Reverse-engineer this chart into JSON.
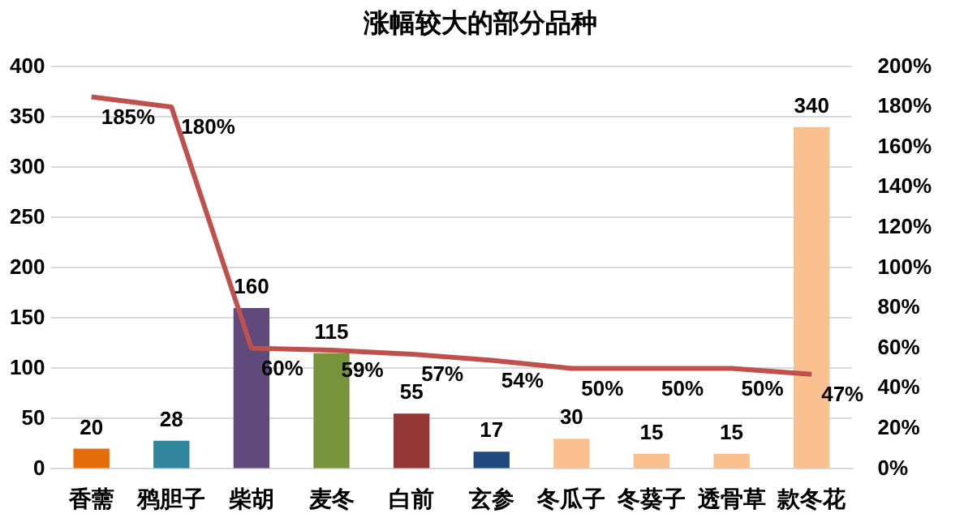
{
  "chart_data": {
    "type": "bar",
    "title": "涨幅较大的部分品种",
    "categories": [
      "香薷",
      "鸦胆子",
      "柴胡",
      "麦冬",
      "白前",
      "玄参",
      "冬瓜子",
      "冬葵子",
      "透骨草",
      "款冬花"
    ],
    "series": [
      {
        "colors": [
          "#e46c0a",
          "#31859c",
          "#604a7b",
          "#77933c",
          "#953735",
          "#1f497d",
          "#fac090",
          "#fac090",
          "#fac090",
          "#fac090"
        ],
        "values": [
          20,
          28,
          160,
          115,
          55,
          17,
          30,
          15,
          15,
          340
        ],
        "value_labels": [
          "20",
          "28",
          "160",
          "115",
          "55",
          "17",
          "30",
          "15",
          "15",
          "340"
        ]
      },
      {
        "type": "line",
        "axis": "y2",
        "color": "#c0504d",
        "values": [
          185,
          180,
          60,
          59,
          57,
          54,
          50,
          50,
          50,
          47
        ],
        "value_labels": [
          "185%",
          "180%",
          "60%",
          "59%",
          "57%",
          "54%",
          "50%",
          "50%",
          "50%",
          "47%"
        ]
      }
    ],
    "ylim": [
      0,
      400
    ],
    "yticks": [
      0,
      50,
      100,
      150,
      200,
      250,
      300,
      350,
      400
    ],
    "y2lim": [
      0,
      200
    ],
    "y2ticks": [
      {
        "value": 0,
        "label": "0%"
      },
      {
        "value": 20,
        "label": "20%"
      },
      {
        "value": 40,
        "label": "40%"
      },
      {
        "value": 60,
        "label": "60%"
      },
      {
        "value": 80,
        "label": "80%"
      },
      {
        "value": 100,
        "label": "100%"
      },
      {
        "value": 120,
        "label": "120%"
      },
      {
        "value": 140,
        "label": "140%"
      },
      {
        "value": 160,
        "label": "160%"
      },
      {
        "value": 180,
        "label": "180%"
      },
      {
        "value": 200,
        "label": "200%"
      }
    ],
    "grid": "y",
    "legend": false,
    "marker": "none",
    "line_style": "solid"
  }
}
